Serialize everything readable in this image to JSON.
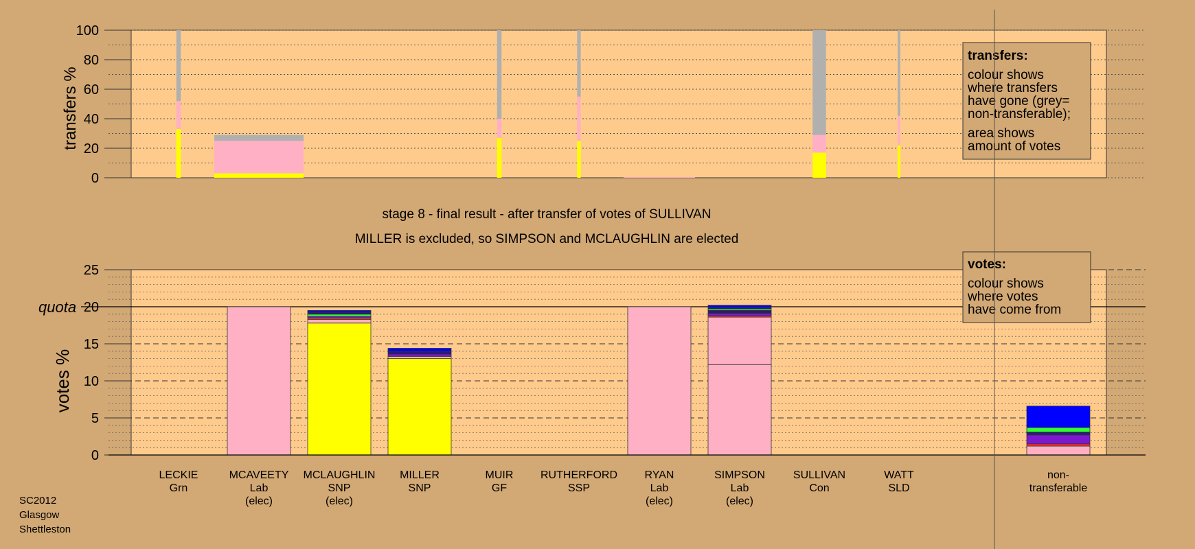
{
  "page": {
    "background": "#d2a874",
    "plot_background": "#ffcb8c"
  },
  "stage": {
    "line1": "stage 8 - final result - after transfer of votes of SULLIVAN",
    "line2": "MILLER is excluded, so SIMPSON and MCLAUGHLIN are elected"
  },
  "footer": {
    "lines": [
      "SC2012",
      "Glasgow",
      "Shettleston"
    ]
  },
  "legend_transfers": {
    "title": "transfers:",
    "lines1": [
      "colour shows",
      "where transfers",
      "have gone (grey=",
      "non-transferable);"
    ],
    "lines2": [
      "area shows",
      "amount of votes"
    ]
  },
  "legend_votes": {
    "title": "votes:",
    "lines": [
      "colour shows",
      "where votes",
      "have come from"
    ]
  },
  "colors": {
    "Grn": "#32ff32",
    "Lab": "#ffb0c4",
    "SNP": "#ffff00",
    "GF": "#7e18d0",
    "SSP": "#ff3030",
    "Con": "#0000ff",
    "SLD": "#2a1a78",
    "nontransferable": "#b0b0b0"
  },
  "chart_data": [
    {
      "type": "bar",
      "stacked": true,
      "title": "",
      "ylabel": "transfers %",
      "ylim": [
        0,
        100
      ],
      "yticks": [
        0,
        20,
        40,
        60,
        80,
        100
      ],
      "grid": true,
      "categories": [
        "LECKIE",
        "MCAVEETY",
        "MCLAUGHLIN",
        "MILLER",
        "MUIR",
        "RUTHERFORD",
        "RYAN",
        "SIMPSON",
        "SULLIVAN",
        "WATT"
      ],
      "bar_weight": [
        0.05,
        1.0,
        0,
        0,
        0.05,
        0.04,
        0.8,
        0,
        0.15,
        0.03
      ],
      "stacks": [
        [
          {
            "party": "SNP",
            "value": 33
          },
          {
            "party": "Lab",
            "value": 19
          },
          {
            "party": "nontransferable",
            "value": 48
          }
        ],
        [
          {
            "party": "SNP",
            "value": 3
          },
          {
            "party": "Lab",
            "value": 22
          },
          {
            "party": "nontransferable",
            "value": 4
          }
        ],
        [],
        [],
        [
          {
            "party": "SNP",
            "value": 27
          },
          {
            "party": "Lab",
            "value": 13
          },
          {
            "party": "nontransferable",
            "value": 60
          }
        ],
        [
          {
            "party": "SNP",
            "value": 25
          },
          {
            "party": "Lab",
            "value": 30
          },
          {
            "party": "nontransferable",
            "value": 45
          }
        ],
        [
          {
            "party": "Lab",
            "value": 0.5
          }
        ],
        [],
        [
          {
            "party": "SNP",
            "value": 17
          },
          {
            "party": "Lab",
            "value": 12
          },
          {
            "party": "nontransferable",
            "value": 71
          }
        ],
        [
          {
            "party": "SNP",
            "value": 22
          },
          {
            "party": "Lab",
            "value": 20
          },
          {
            "party": "nontransferable",
            "value": 58
          }
        ]
      ]
    },
    {
      "type": "bar",
      "stacked": true,
      "title": "",
      "ylabel": "votes %",
      "ylim": [
        0,
        25
      ],
      "yticks": [
        0,
        5,
        10,
        15,
        20,
        25
      ],
      "quota": {
        "label": "quota",
        "value": 20
      },
      "grid": true,
      "candidates": [
        {
          "name": "LECKIE",
          "party": "Grn",
          "status": ""
        },
        {
          "name": "MCAVEETY",
          "party": "Lab",
          "status": "(elec)"
        },
        {
          "name": "MCLAUGHLIN",
          "party": "SNP",
          "status": "(elec)"
        },
        {
          "name": "MILLER",
          "party": "SNP",
          "status": ""
        },
        {
          "name": "MUIR",
          "party": "GF",
          "status": ""
        },
        {
          "name": "RUTHERFORD",
          "party": "SSP",
          "status": ""
        },
        {
          "name": "RYAN",
          "party": "Lab",
          "status": "(elec)"
        },
        {
          "name": "SIMPSON",
          "party": "Lab",
          "status": "(elec)"
        },
        {
          "name": "SULLIVAN",
          "party": "Con",
          "status": ""
        },
        {
          "name": "WATT",
          "party": "SLD",
          "status": ""
        }
      ],
      "nontransferable_label": [
        "non-",
        "transferable"
      ],
      "stacks": [
        [],
        [
          {
            "party": "Lab",
            "value": 20
          }
        ],
        [
          {
            "party": "SNP",
            "value": 17.8
          },
          {
            "party": "Lab",
            "value": 0.5
          },
          {
            "party": "SSP",
            "value": 0.2
          },
          {
            "party": "GF",
            "value": 0.2
          },
          {
            "party": "Grn",
            "value": 0.3
          },
          {
            "party": "SLD",
            "value": 0.3
          },
          {
            "party": "Con",
            "value": 0.2
          }
        ],
        [
          {
            "party": "SNP",
            "value": 13.0
          },
          {
            "party": "Lab",
            "value": 0.3
          },
          {
            "party": "GF",
            "value": 0.3
          },
          {
            "party": "SLD",
            "value": 0.4
          },
          {
            "party": "Con",
            "value": 0.4
          }
        ],
        [],
        [],
        [
          {
            "party": "Lab",
            "value": 20
          }
        ],
        [
          {
            "party": "Lab",
            "value": 12.2
          },
          {
            "party": "Lab",
            "value": 6.4
          },
          {
            "party": "SSP",
            "value": 0.2
          },
          {
            "party": "GF",
            "value": 0.3
          },
          {
            "party": "SLD",
            "value": 0.4
          },
          {
            "party": "Grn",
            "value": 0.2
          },
          {
            "party": "SLD",
            "value": 0.2
          },
          {
            "party": "Con",
            "value": 0.3
          }
        ],
        [],
        [],
        [
          {
            "party": "Lab",
            "value": 1.2
          },
          {
            "party": "SSP",
            "value": 0.3
          },
          {
            "party": "GF",
            "value": 1.2
          },
          {
            "party": "SLD",
            "value": 0.4
          },
          {
            "party": "Grn",
            "value": 0.6
          },
          {
            "party": "Con",
            "value": 2.9
          }
        ]
      ]
    }
  ]
}
